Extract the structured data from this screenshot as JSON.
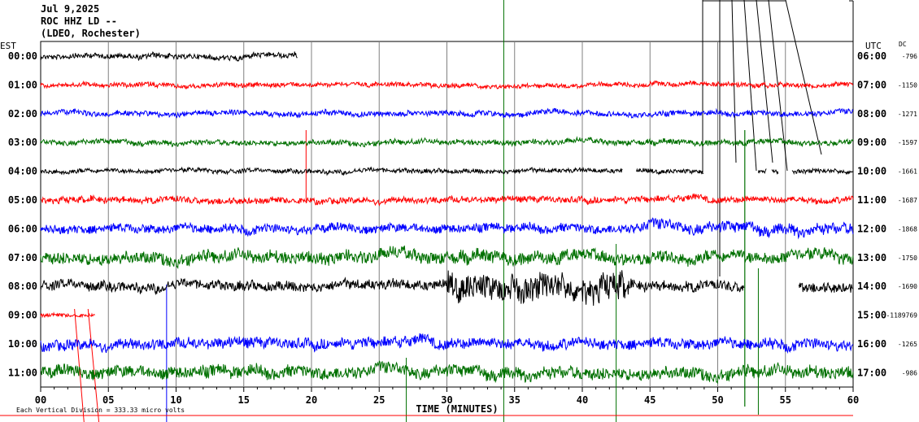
{
  "header": {
    "date": "Jul 9,2025",
    "station": "ROC HHZ LD --",
    "network": "(LDEO, Rochester)"
  },
  "labels": {
    "left_tz": "EST",
    "right_tz": "UTC",
    "dc": "DC",
    "xlabel": "TIME (MINUTES)",
    "footer": "Each Vertical Division =  333.33 micro volts"
  },
  "chart_data": {
    "type": "line",
    "xlabel": "TIME (MINUTES)",
    "xlim": [
      0,
      60
    ],
    "x_ticks": [
      "00",
      "05",
      "10",
      "15",
      "20",
      "25",
      "30",
      "35",
      "40",
      "45",
      "50",
      "55",
      "60"
    ],
    "trace_colors": [
      "#000000",
      "#ff0000",
      "#0000ff",
      "#007000"
    ],
    "rows": [
      {
        "est": "00:00",
        "utc": "06:00",
        "dc": "-796",
        "color": "#000000",
        "amp": 6,
        "segments": [
          [
            0,
            19
          ]
        ]
      },
      {
        "est": "01:00",
        "utc": "07:00",
        "dc": "-1150",
        "color": "#ff0000",
        "amp": 5,
        "segments": [
          [
            0,
            60
          ]
        ]
      },
      {
        "est": "02:00",
        "utc": "08:00",
        "dc": "-1271",
        "color": "#0000ff",
        "amp": 6,
        "segments": [
          [
            0,
            60
          ]
        ]
      },
      {
        "est": "03:00",
        "utc": "09:00",
        "dc": "-1597",
        "color": "#007000",
        "amp": 6,
        "segments": [
          [
            0,
            60
          ]
        ]
      },
      {
        "est": "04:00",
        "utc": "10:00",
        "dc": "-1661",
        "color": "#000000",
        "amp": 5,
        "segments": [
          [
            0,
            43
          ],
          [
            44,
            49
          ],
          [
            53,
            53.6
          ],
          [
            54,
            54.5
          ],
          [
            55.5,
            60
          ]
        ]
      },
      {
        "est": "05:00",
        "utc": "11:00",
        "dc": "-1687",
        "color": "#ff0000",
        "amp": 7,
        "segments": [
          [
            0,
            60
          ]
        ]
      },
      {
        "est": "06:00",
        "utc": "12:00",
        "dc": "-1868",
        "color": "#0000ff",
        "amp": 10,
        "segments": [
          [
            0,
            60
          ]
        ]
      },
      {
        "est": "07:00",
        "utc": "13:00",
        "dc": "-1750",
        "color": "#007000",
        "amp": 14,
        "segments": [
          [
            0,
            60
          ]
        ]
      },
      {
        "est": "08:00",
        "utc": "14:00",
        "dc": "-1690",
        "color": "#000000",
        "amp": 11,
        "segments": [
          [
            0,
            52
          ],
          [
            56,
            60
          ]
        ]
      },
      {
        "est": "09:00",
        "utc": "15:00",
        "dc": "-1189769",
        "color": "#ff0000",
        "amp": 4,
        "segments": [
          [
            0,
            4
          ]
        ]
      },
      {
        "est": "10:00",
        "utc": "16:00",
        "dc": "-1265",
        "color": "#0000ff",
        "amp": 12,
        "segments": [
          [
            0,
            60
          ]
        ]
      },
      {
        "est": "11:00",
        "utc": "17:00",
        "dc": "-986",
        "color": "#007000",
        "amp": 14,
        "segments": [
          [
            0,
            60
          ]
        ]
      }
    ]
  }
}
